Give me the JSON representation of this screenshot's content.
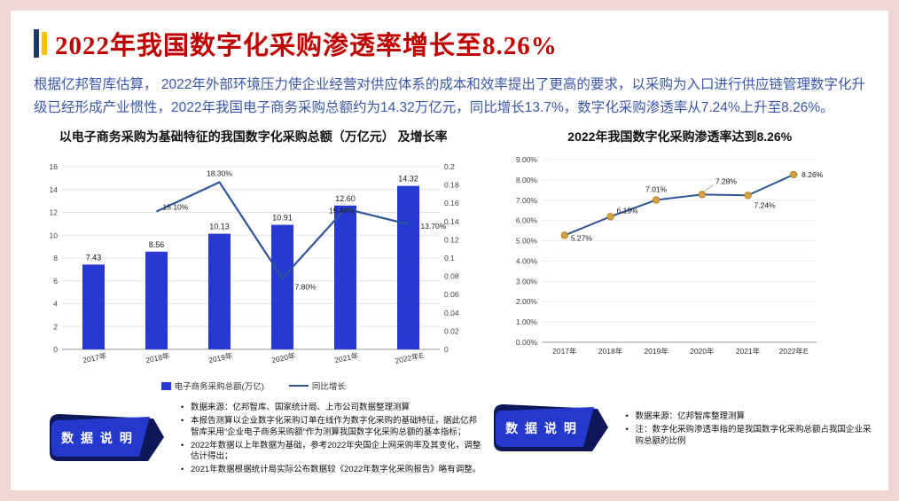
{
  "colors": {
    "page_background": "#f1d6d6",
    "card_background": "#ffffff",
    "title_red": "#c00000",
    "title_bar_blue": "#1f3864",
    "title_bar_yellow": "#ffc000",
    "intro_blue": "#3a57ab",
    "bar_blue": "#2639d2",
    "line_blue": "#2f5597",
    "marker_gold": "#d5a042",
    "badge_front_blue": "#2438cc",
    "badge_back_navy": "#0d175a"
  },
  "header": {
    "title": "2022年我国数字化采购渗透率增长至8.26%"
  },
  "intro": {
    "text": "根据亿邦智库估算， 2022年外部环境压力使企业经营对供应体系的成本和效率提出了更高的要求，以采购为入口进行供应链管理数字化升级已经形成产业惯性，2022年我国电子商务采购总额约为14.32万亿元，同比增长13.7%，数字化采购渗透率从7.24%上升至8.26%。"
  },
  "chart_data": [
    {
      "type": "bar",
      "title": "以电子商务采购为基础特征的我国数字化采购总额（万亿元） 及增长率",
      "categories": [
        "2017年",
        "2018年",
        "2019年",
        "2020年",
        "2021年",
        "2022年E"
      ],
      "series": [
        {
          "name": "电子商务采购总额(万亿)",
          "type": "bar",
          "axis": "left",
          "color": "#2639d2",
          "values": [
            7.43,
            8.56,
            10.13,
            10.91,
            12.6,
            14.32
          ]
        },
        {
          "name": "同比增长",
          "type": "line",
          "axis": "right",
          "color": "#2f5597",
          "values": [
            null,
            0.151,
            0.183,
            0.078,
            0.154,
            0.137
          ],
          "labels": [
            "",
            "15.10%",
            "18.30%",
            "7.80%",
            "15.40%",
            "13.70%"
          ]
        }
      ],
      "left_axis": {
        "min": 0,
        "max": 16,
        "step": 2
      },
      "right_axis": {
        "min": 0,
        "max": 0.2,
        "step": 0.02
      },
      "grid": true,
      "legend_position": "bottom"
    },
    {
      "type": "line",
      "title": "2022年我国数字化采购渗透率达到8.26%",
      "categories": [
        "2017年",
        "2018年",
        "2019年",
        "2020年",
        "2021年",
        "2022年E"
      ],
      "values": [
        5.27,
        6.19,
        7.01,
        7.28,
        7.24,
        8.26
      ],
      "labels": [
        "5.27%",
        "6.19%",
        "7.01%",
        "7.28%",
        "7.24%",
        "8.26%"
      ],
      "y_axis": {
        "min": 0,
        "max": 9,
        "step": 1,
        "format": "percent"
      },
      "line_color": "#2f5597",
      "marker_color": "#d5a042",
      "grid": true
    }
  ],
  "notes": {
    "left": {
      "badge": "数 据 说 明",
      "items": [
        "数据来源：亿邦智库、国家统计局、上市公司数据整理测算",
        "本报告测算以企业数字化采购订单在线作为数字化采购的基础特征，据此亿邦智库采用“企业电子商务采购额”作为测算我国数字化采购总额的基本指标；",
        "2022年数据以上年数据为基础，参考2022年央国企上网采购率及其变化，调整估计得出；",
        "2021年数据根据统计局实际公布数据较《2022年数字化采购报告》略有调整。"
      ]
    },
    "right": {
      "badge": "数 据 说 明",
      "items": [
        "数据来源：亿邦智库整理测算",
        "注：数字化采购渗透率指的是我国数字化采购总额占我国企业采购总额的比例"
      ]
    }
  }
}
